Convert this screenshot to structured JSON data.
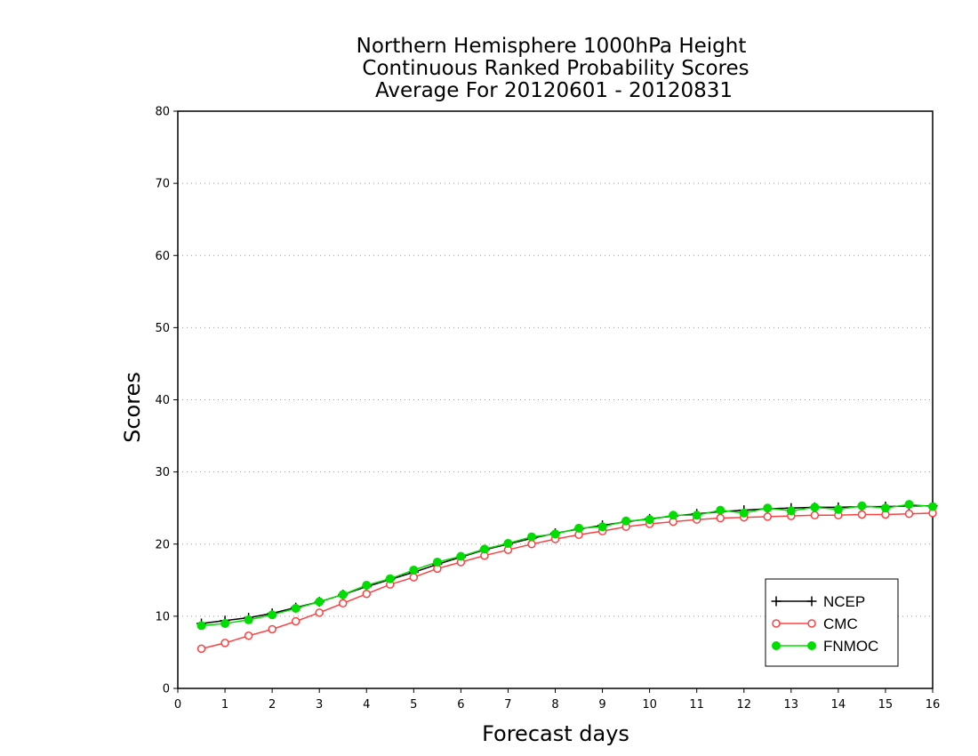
{
  "chart_data": {
    "type": "line",
    "title_lines": [
      "Northern Hemisphere 1000hPa Height",
      "Continuous Ranked Probability Scores",
      "Average For 20120601 - 20120831"
    ],
    "xlabel": "Forecast days",
    "ylabel": "Scores",
    "xlim": [
      0,
      16
    ],
    "ylim": [
      0,
      80
    ],
    "x_ticks": [
      "0",
      "1",
      "2",
      "3",
      "4",
      "5",
      "6",
      "7",
      "8",
      "9",
      "10",
      "11",
      "12",
      "13",
      "14",
      "15",
      "16"
    ],
    "y_ticks": [
      "0",
      "10",
      "20",
      "30",
      "40",
      "50",
      "60",
      "70",
      "80"
    ],
    "grid": "horizontal dotted",
    "legend_position": "bottom-right",
    "x": [
      0.5,
      1,
      1.5,
      2,
      2.5,
      3,
      3.5,
      4,
      4.5,
      5,
      5.5,
      6,
      6.5,
      7,
      7.5,
      8,
      8.5,
      9,
      9.5,
      10,
      10.5,
      11,
      11.5,
      12,
      12.5,
      13,
      13.5,
      14,
      14.5,
      15,
      15.5,
      16
    ],
    "series": [
      {
        "name": "NCEP",
        "color": "#000000",
        "marker": "plus",
        "values": [
          9.0,
          9.4,
          9.8,
          10.4,
          11.2,
          12.0,
          13.0,
          14.1,
          15.1,
          16.1,
          17.2,
          18.2,
          19.2,
          20.0,
          20.8,
          21.5,
          22.1,
          22.6,
          23.1,
          23.5,
          23.9,
          24.2,
          24.5,
          24.7,
          24.9,
          25.0,
          25.1,
          25.1,
          25.2,
          25.2,
          25.3,
          25.3
        ]
      },
      {
        "name": "CMC",
        "color": "#ff4040",
        "marker": "open-circle",
        "values": [
          5.5,
          6.3,
          7.3,
          8.2,
          9.3,
          10.5,
          11.8,
          13.1,
          14.4,
          15.4,
          16.6,
          17.5,
          18.4,
          19.2,
          20.0,
          20.7,
          21.3,
          21.8,
          22.4,
          22.8,
          23.1,
          23.4,
          23.6,
          23.7,
          23.8,
          23.9,
          24.0,
          24.0,
          24.1,
          24.1,
          24.2,
          24.3
        ]
      },
      {
        "name": "FNMOC",
        "color": "#00dd00",
        "marker": "filled-circle",
        "values": [
          8.7,
          9.0,
          9.5,
          10.2,
          11.1,
          12.0,
          13.0,
          14.3,
          15.2,
          16.4,
          17.5,
          18.3,
          19.3,
          20.1,
          21.0,
          21.4,
          22.2,
          22.4,
          23.2,
          23.4,
          24.0,
          24.0,
          24.7,
          24.3,
          25.0,
          24.6,
          25.1,
          24.8,
          25.3,
          25.0,
          25.5,
          25.2
        ]
      }
    ]
  }
}
